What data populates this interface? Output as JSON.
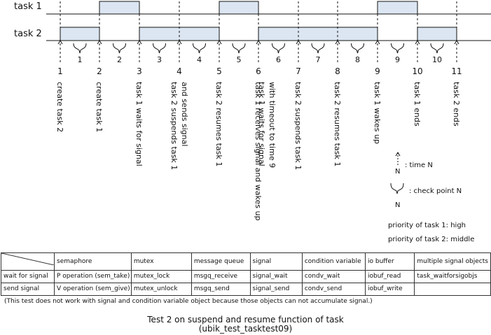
{
  "tasks": {
    "task1_label": "task 1",
    "task2_label": "task 2"
  },
  "timeline": {
    "points": [
      "1",
      "2",
      "3",
      "4",
      "5",
      "6",
      "7",
      "8",
      "9",
      "10",
      "11"
    ],
    "checkpoints": [
      "1",
      "2",
      "3",
      "4",
      "5",
      "6",
      "7",
      "8",
      "9",
      "10"
    ],
    "events": [
      [
        "create task 2"
      ],
      [
        "create task 1"
      ],
      [
        "task 1 waits for signal"
      ],
      [
        "task 2 suspends task 1",
        "and sends signal"
      ],
      [
        "task 2 resumes task 1"
      ],
      [
        "task 1 receives signal and wakes up"
      ],
      [
        "task 1 waits for signal",
        "with timeout to time 9"
      ],
      [
        "task 2 suspends task 1"
      ],
      [
        "task 2 resumes task 1"
      ],
      [
        "task 1 wakes up"
      ],
      [
        "task 1 ends"
      ],
      [
        "task 2 ends"
      ]
    ],
    "task1_running": [
      [
        2,
        3
      ],
      [
        5,
        6
      ],
      [
        9,
        10
      ]
    ],
    "task2_running": [
      [
        1,
        2
      ],
      [
        3,
        5
      ],
      [
        6,
        9
      ],
      [
        10,
        11
      ]
    ],
    "bar_color": "#dce6f2"
  },
  "legend": {
    "time_label": ": time N",
    "time_n": "N",
    "check_label": ": check point N",
    "check_n": "N",
    "priority1": "priority of task 1: high",
    "priority2": "priority of task 2: middle"
  },
  "table": {
    "header": [
      "semaphore",
      "mutex",
      "message queue",
      "signal",
      "condition variable",
      "io buffer",
      "multiple signal objects"
    ],
    "rows": [
      {
        "label": "wait for signal",
        "cells": [
          "P operation (sem_take)",
          "mutex_lock",
          "msgq_receive",
          "signal_wait",
          "condv_wait",
          "iobuf_read",
          "task_waitforsigobjs"
        ]
      },
      {
        "label": "send signal",
        "cells": [
          "V operation (sem_give)",
          "mutex_unlock",
          "msgq_send",
          "signal_send",
          "condv_send",
          "iobuf_write",
          ""
        ]
      }
    ]
  },
  "note": "(This test does not work with signal and condition variable object because those objects can not accumulate signal.)",
  "title": "Test 2 on suspend and resume function of task",
  "subtitle": "(ubik_test_tasktest09)"
}
